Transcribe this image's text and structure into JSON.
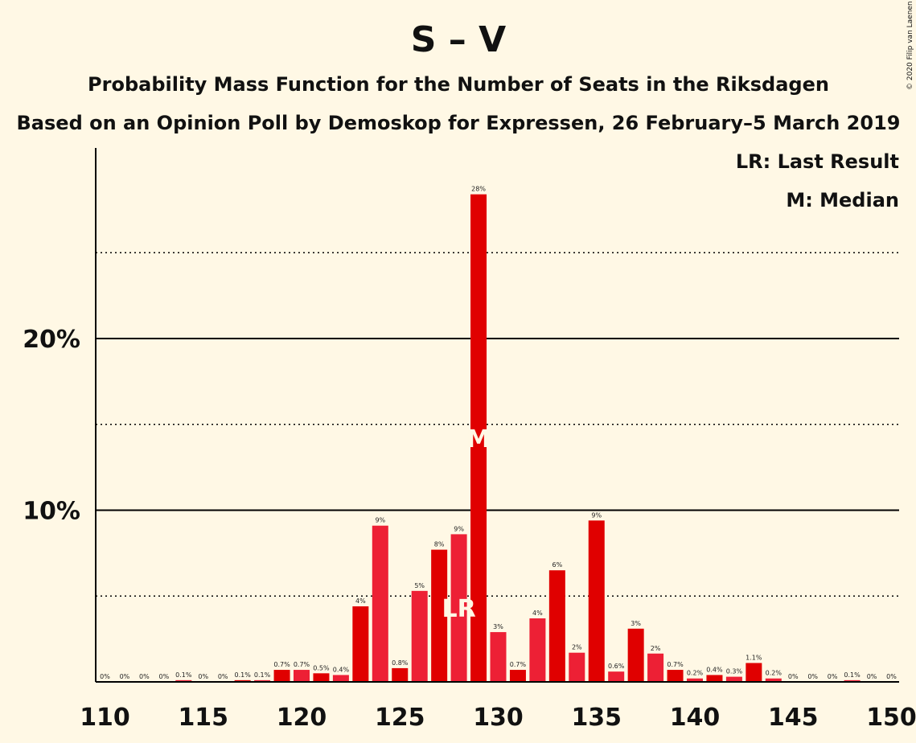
{
  "copyright": "© 2020 Filip van Laenen",
  "chart_data": {
    "type": "bar",
    "title": "S – V",
    "subtitle": "Probability Mass Function for the Number of Seats in the Riksdagen",
    "subtitle2": "Based on an Opinion Poll by Demoskop for Expressen, 26 February–5 March 2019",
    "legend": [
      "LR: Last Result",
      "M: Median"
    ],
    "legend_position": "top-right",
    "x": [
      110,
      111,
      112,
      113,
      114,
      115,
      116,
      117,
      118,
      119,
      120,
      121,
      122,
      123,
      124,
      125,
      126,
      127,
      128,
      129,
      130,
      131,
      132,
      133,
      134,
      135,
      136,
      137,
      138,
      139,
      140,
      141,
      142,
      143,
      144,
      145,
      146,
      147,
      148,
      149,
      150
    ],
    "values": [
      0,
      0,
      0,
      0,
      0.1,
      0,
      0,
      0.1,
      0.1,
      0.7,
      0.7,
      0.5,
      0.4,
      4.4,
      9.1,
      0.8,
      5.3,
      7.7,
      8.6,
      28.4,
      2.9,
      0.7,
      3.7,
      6.5,
      1.7,
      9.4,
      0.6,
      3.1,
      1.65,
      0.7,
      0.2,
      0.4,
      0.3,
      1.1,
      0.2,
      0,
      0,
      0,
      0.1,
      0,
      0
    ],
    "value_labels": [
      "0%",
      "0%",
      "0%",
      "0%",
      "0.1%",
      "0%",
      "0%",
      "0.1%",
      "0.1%",
      "0.7%",
      "0.7%",
      "0.5%",
      "0.4%",
      "4%",
      "9%",
      "0.8%",
      "5%",
      "8%",
      "9%",
      "28%",
      "3%",
      "0.7%",
      "4%",
      "6%",
      "2%",
      "9%",
      "0.6%",
      "3%",
      "2%",
      "0.7%",
      "0.2%",
      "0.4%",
      "0.3%",
      "1.1%",
      "0.2%",
      "0%",
      "0%",
      "0%",
      "0.1%",
      "0%",
      "0%"
    ],
    "x_ticks": [
      110,
      115,
      120,
      125,
      130,
      135,
      140,
      145,
      150
    ],
    "x_tick_labels": [
      "110",
      "115",
      "120",
      "125",
      "130",
      "135",
      "140",
      "145",
      "150"
    ],
    "y_ticks": [
      10,
      20
    ],
    "y_tick_labels": [
      "10%",
      "20%"
    ],
    "y_minor_ticks": [
      5,
      15,
      25
    ],
    "ylim": [
      0,
      31
    ],
    "xlim": [
      110,
      150
    ],
    "last_result": 128,
    "last_result_label": "LR",
    "median": 129,
    "median_label": "M",
    "colors": {
      "bar_light": "#ed2035",
      "bar_dark": "#e00000",
      "background": "#fff8e5",
      "axis": "#000000"
    },
    "xlabel": "",
    "ylabel": ""
  }
}
